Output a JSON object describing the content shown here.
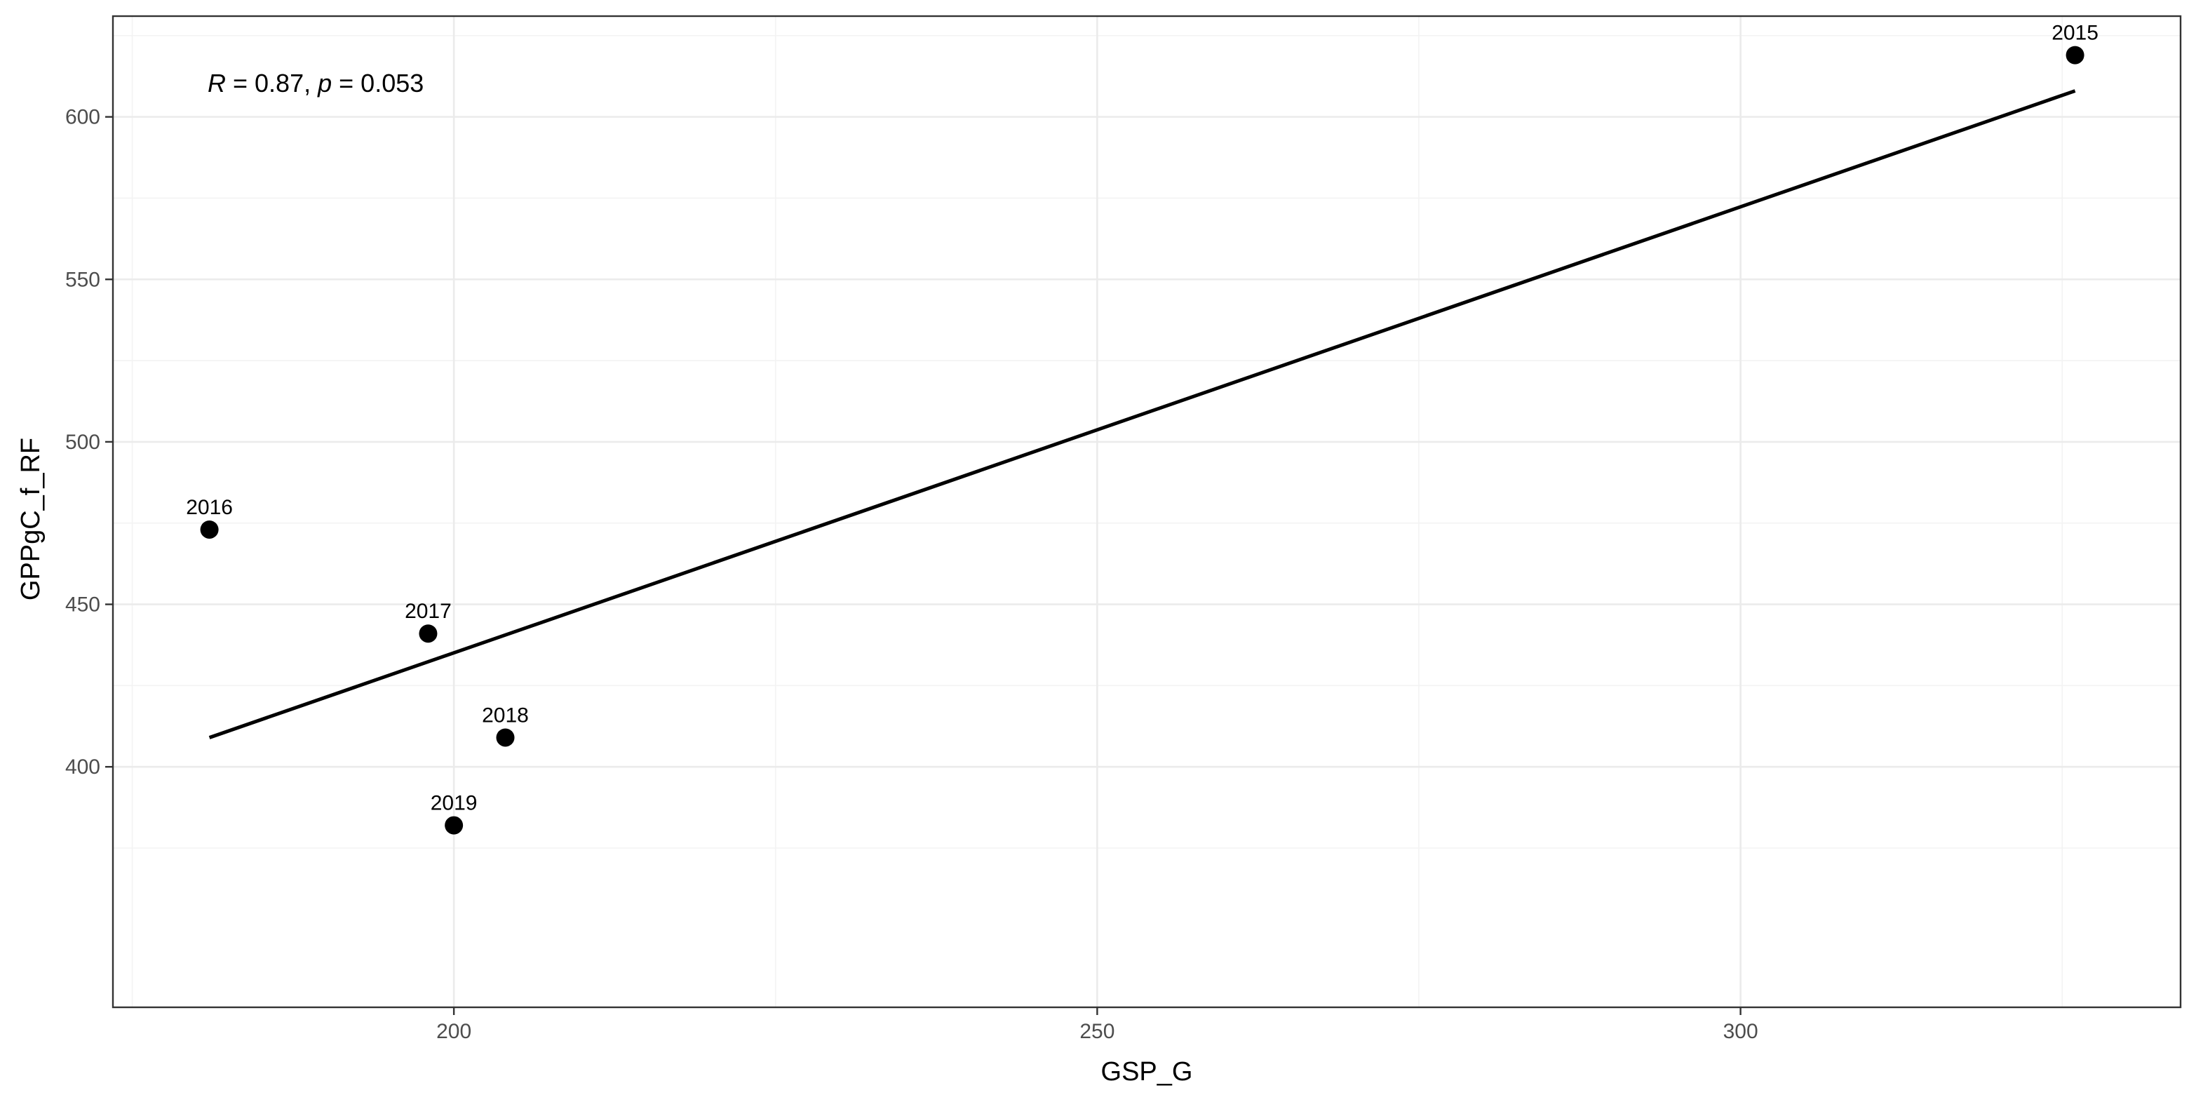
{
  "chart_data": {
    "type": "scatter",
    "title": "",
    "xlabel": "GSP_G",
    "ylabel": "GPPgC_f_RF",
    "xlim": [
      173.5,
      334.2
    ],
    "ylim": [
      326,
      631
    ],
    "x_ticks": [
      200,
      250,
      300
    ],
    "y_ticks": [
      400,
      450,
      500,
      550,
      600
    ],
    "grid": true,
    "points": [
      {
        "label": "2015",
        "x": 326,
        "y": 619
      },
      {
        "label": "2016",
        "x": 181,
        "y": 473
      },
      {
        "label": "2017",
        "x": 198,
        "y": 441
      },
      {
        "label": "2018",
        "x": 204,
        "y": 409
      },
      {
        "label": "2019",
        "x": 200,
        "y": 382
      }
    ],
    "fit_line": {
      "x": [
        181,
        326
      ],
      "y": [
        409,
        608
      ]
    },
    "annotation": {
      "r_symbol": "R",
      "r_text": " = 0.87, ",
      "p_symbol": "p",
      "p_text": " = 0.053"
    },
    "colors": {
      "points": "#000000",
      "line": "#000000",
      "grid": "#ebebeb",
      "border": "#333333"
    }
  }
}
